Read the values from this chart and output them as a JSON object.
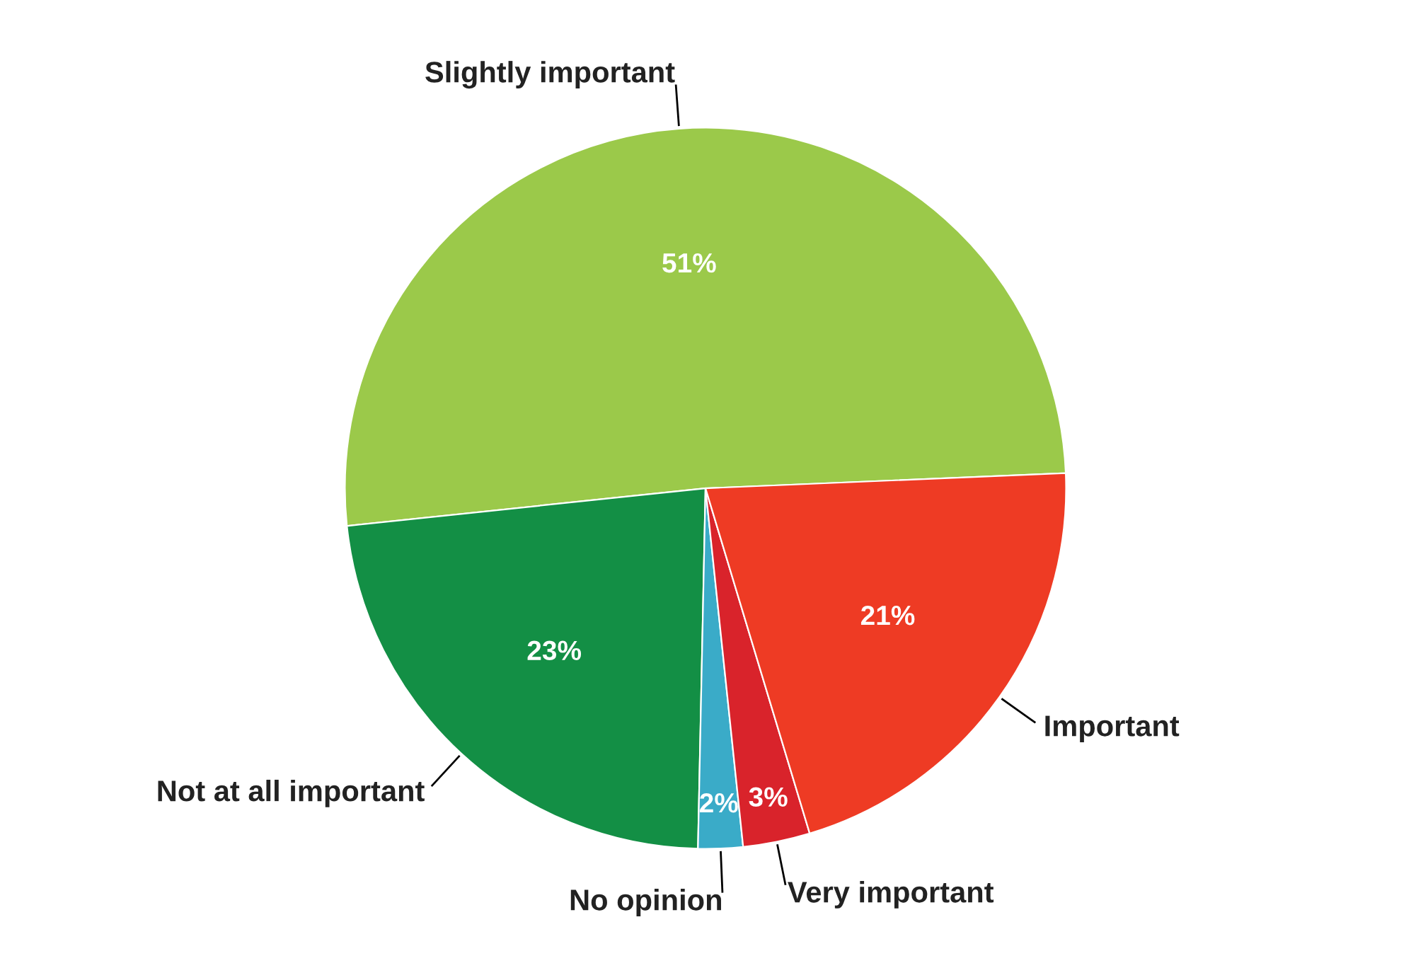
{
  "chart_data": {
    "type": "pie",
    "categories": [
      "Slightly important",
      "Not at all important",
      "No opinion",
      "Very important",
      "Important"
    ],
    "values": [
      51,
      23,
      2,
      3,
      21
    ],
    "colors": [
      "#9bc94a",
      "#138f45",
      "#3aabc8",
      "#d9232b",
      "#ee3b24"
    ],
    "value_labels": [
      "51%",
      "23%",
      "2%",
      "3%",
      "21%"
    ],
    "legend": false
  }
}
